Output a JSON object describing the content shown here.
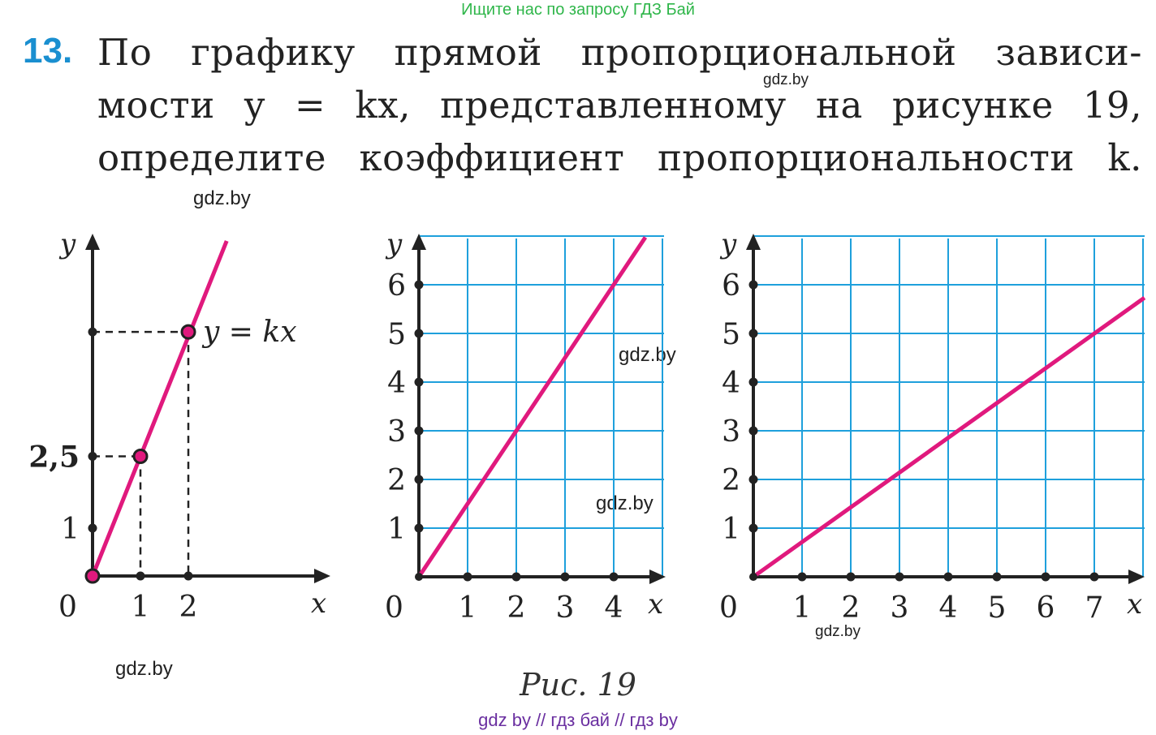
{
  "banner": "Ищите нас по запросу ГДЗ Бай",
  "task": {
    "number": "13.",
    "lines": [
      "По графику прямой пропорциональной зависи-",
      "мости y = kx, представленному на рисунке 19,",
      "определите коэффициент пропорциональности k."
    ]
  },
  "watermarks": [
    "gdz.by",
    "gdz.by",
    "gdz.by",
    "gdz.by",
    "gdz.by",
    "gdz.by"
  ],
  "figures": [
    {
      "x_ticks": [
        "1",
        "2"
      ],
      "y_ticks": [
        "1",
        "2,5"
      ],
      "origin": "0",
      "x_axis": "x",
      "y_axis": "y",
      "line_label": "y = kx",
      "slope": 2.5,
      "points": [
        [
          0,
          0
        ],
        [
          1,
          2.5
        ],
        [
          2,
          5
        ]
      ]
    },
    {
      "x_ticks": [
        "1",
        "2",
        "3",
        "4"
      ],
      "y_ticks": [
        "1",
        "2",
        "3",
        "4",
        "5",
        "6"
      ],
      "origin": "0",
      "x_axis": "x",
      "y_axis": "y",
      "slope": 1.5
    },
    {
      "x_ticks": [
        "1",
        "2",
        "3",
        "4",
        "5",
        "6",
        "7"
      ],
      "y_ticks": [
        "1",
        "2",
        "3",
        "4",
        "5",
        "6"
      ],
      "origin": "0",
      "x_axis": "x",
      "y_axis": "y",
      "slope": 0.714
    }
  ],
  "caption": "Рис. 19",
  "bottom": "gdz by  //  гдз бай  //  гдз by",
  "colors": {
    "line": "#e0197d",
    "grid": "#1ea0dc",
    "number": "#1a8fd0",
    "banner": "#2fb64a",
    "bottom": "#6a2fa0"
  }
}
